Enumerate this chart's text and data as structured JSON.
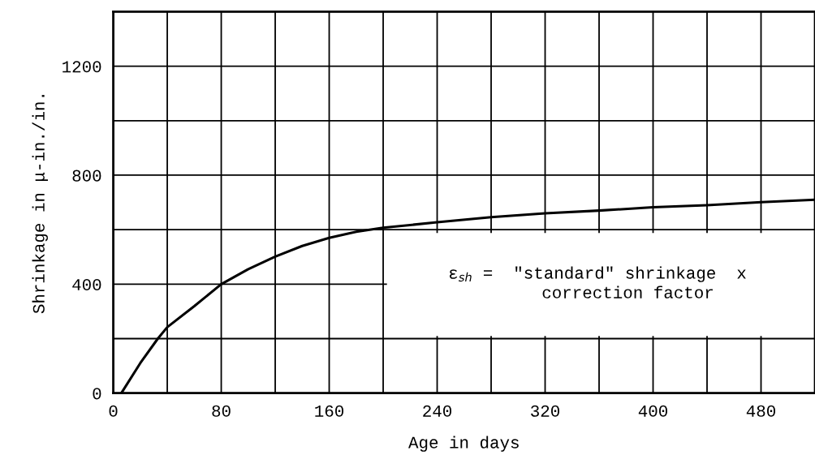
{
  "chart_data": {
    "type": "line",
    "xlabel": "Age in days",
    "ylabel": "Shrinkage in μ-in./in.",
    "x": [
      6,
      20,
      33,
      40,
      60,
      80,
      100,
      120,
      140,
      160,
      180,
      200,
      240,
      280,
      320,
      360,
      400,
      440,
      480,
      520
    ],
    "series": [
      {
        "color": "#000000",
        "values": [
          0,
          110,
          200,
          242,
          319,
          400,
          455,
          501,
          540,
          570,
          592,
          607,
          627,
          646,
          660,
          670,
          682,
          690,
          701,
          710
        ]
      }
    ],
    "xlim": [
      0,
      520
    ],
    "xticks": [
      0,
      80,
      160,
      240,
      320,
      400,
      480
    ],
    "ylim": [
      0,
      1400
    ],
    "yticks": [
      0,
      400,
      800,
      1200
    ],
    "grid": true,
    "marker": "none",
    "line_style": "solid",
    "annotations": [
      "ε$_{sh}$ =  ″standard″ shrinkage  x\n      correction factor"
    ]
  }
}
